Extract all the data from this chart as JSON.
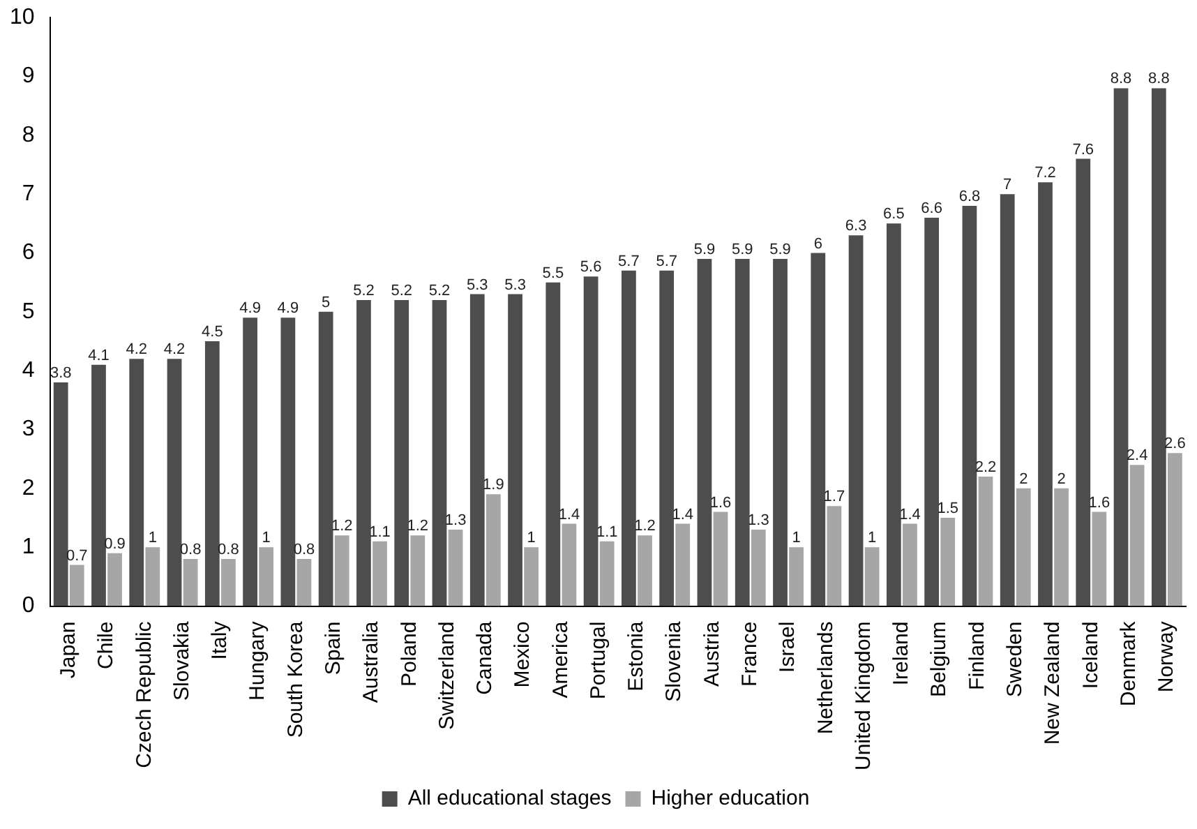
{
  "chart_data": {
    "type": "bar",
    "categories": [
      "Japan",
      "Chile",
      "Czech Republic",
      "Slovakia",
      "Italy",
      "Hungary",
      "South Korea",
      "Spain",
      "Australia",
      "Poland",
      "Switzerland",
      "Canada",
      "Mexico",
      "America",
      "Portugal",
      "Estonia",
      "Slovenia",
      "Austria",
      "France",
      "Israel",
      "Netherlands",
      "United Kingdom",
      "Ireland",
      "Belgium",
      "Finland",
      "Sweden",
      "New Zealand",
      "Iceland",
      "Denmark",
      "Norway"
    ],
    "series": [
      {
        "name": "All educational stages",
        "color": "#4d4d4d",
        "values": [
          3.8,
          4.1,
          4.2,
          4.2,
          4.5,
          4.9,
          4.9,
          5,
          5.2,
          5.2,
          5.2,
          5.3,
          5.3,
          5.5,
          5.6,
          5.7,
          5.7,
          5.9,
          5.9,
          5.9,
          6,
          6.3,
          6.5,
          6.6,
          6.8,
          7,
          7.2,
          7.6,
          8.8,
          8.8
        ]
      },
      {
        "name": "Higher education",
        "color": "#a6a6a6",
        "values": [
          0.7,
          0.9,
          1,
          0.8,
          0.8,
          1,
          0.8,
          1.2,
          1.1,
          1.2,
          1.3,
          1.9,
          1,
          1.4,
          1.1,
          1.2,
          1.4,
          1.6,
          1.3,
          1,
          1.7,
          1,
          1.4,
          1.5,
          2.2,
          2,
          2,
          1.6,
          2.4,
          2.6
        ]
      }
    ],
    "ylim": [
      0,
      10
    ],
    "yticks": [
      0,
      1,
      2,
      3,
      4,
      5,
      6,
      7,
      8,
      9,
      10
    ],
    "grid": false,
    "legend": "bottom",
    "data_labels": true
  }
}
